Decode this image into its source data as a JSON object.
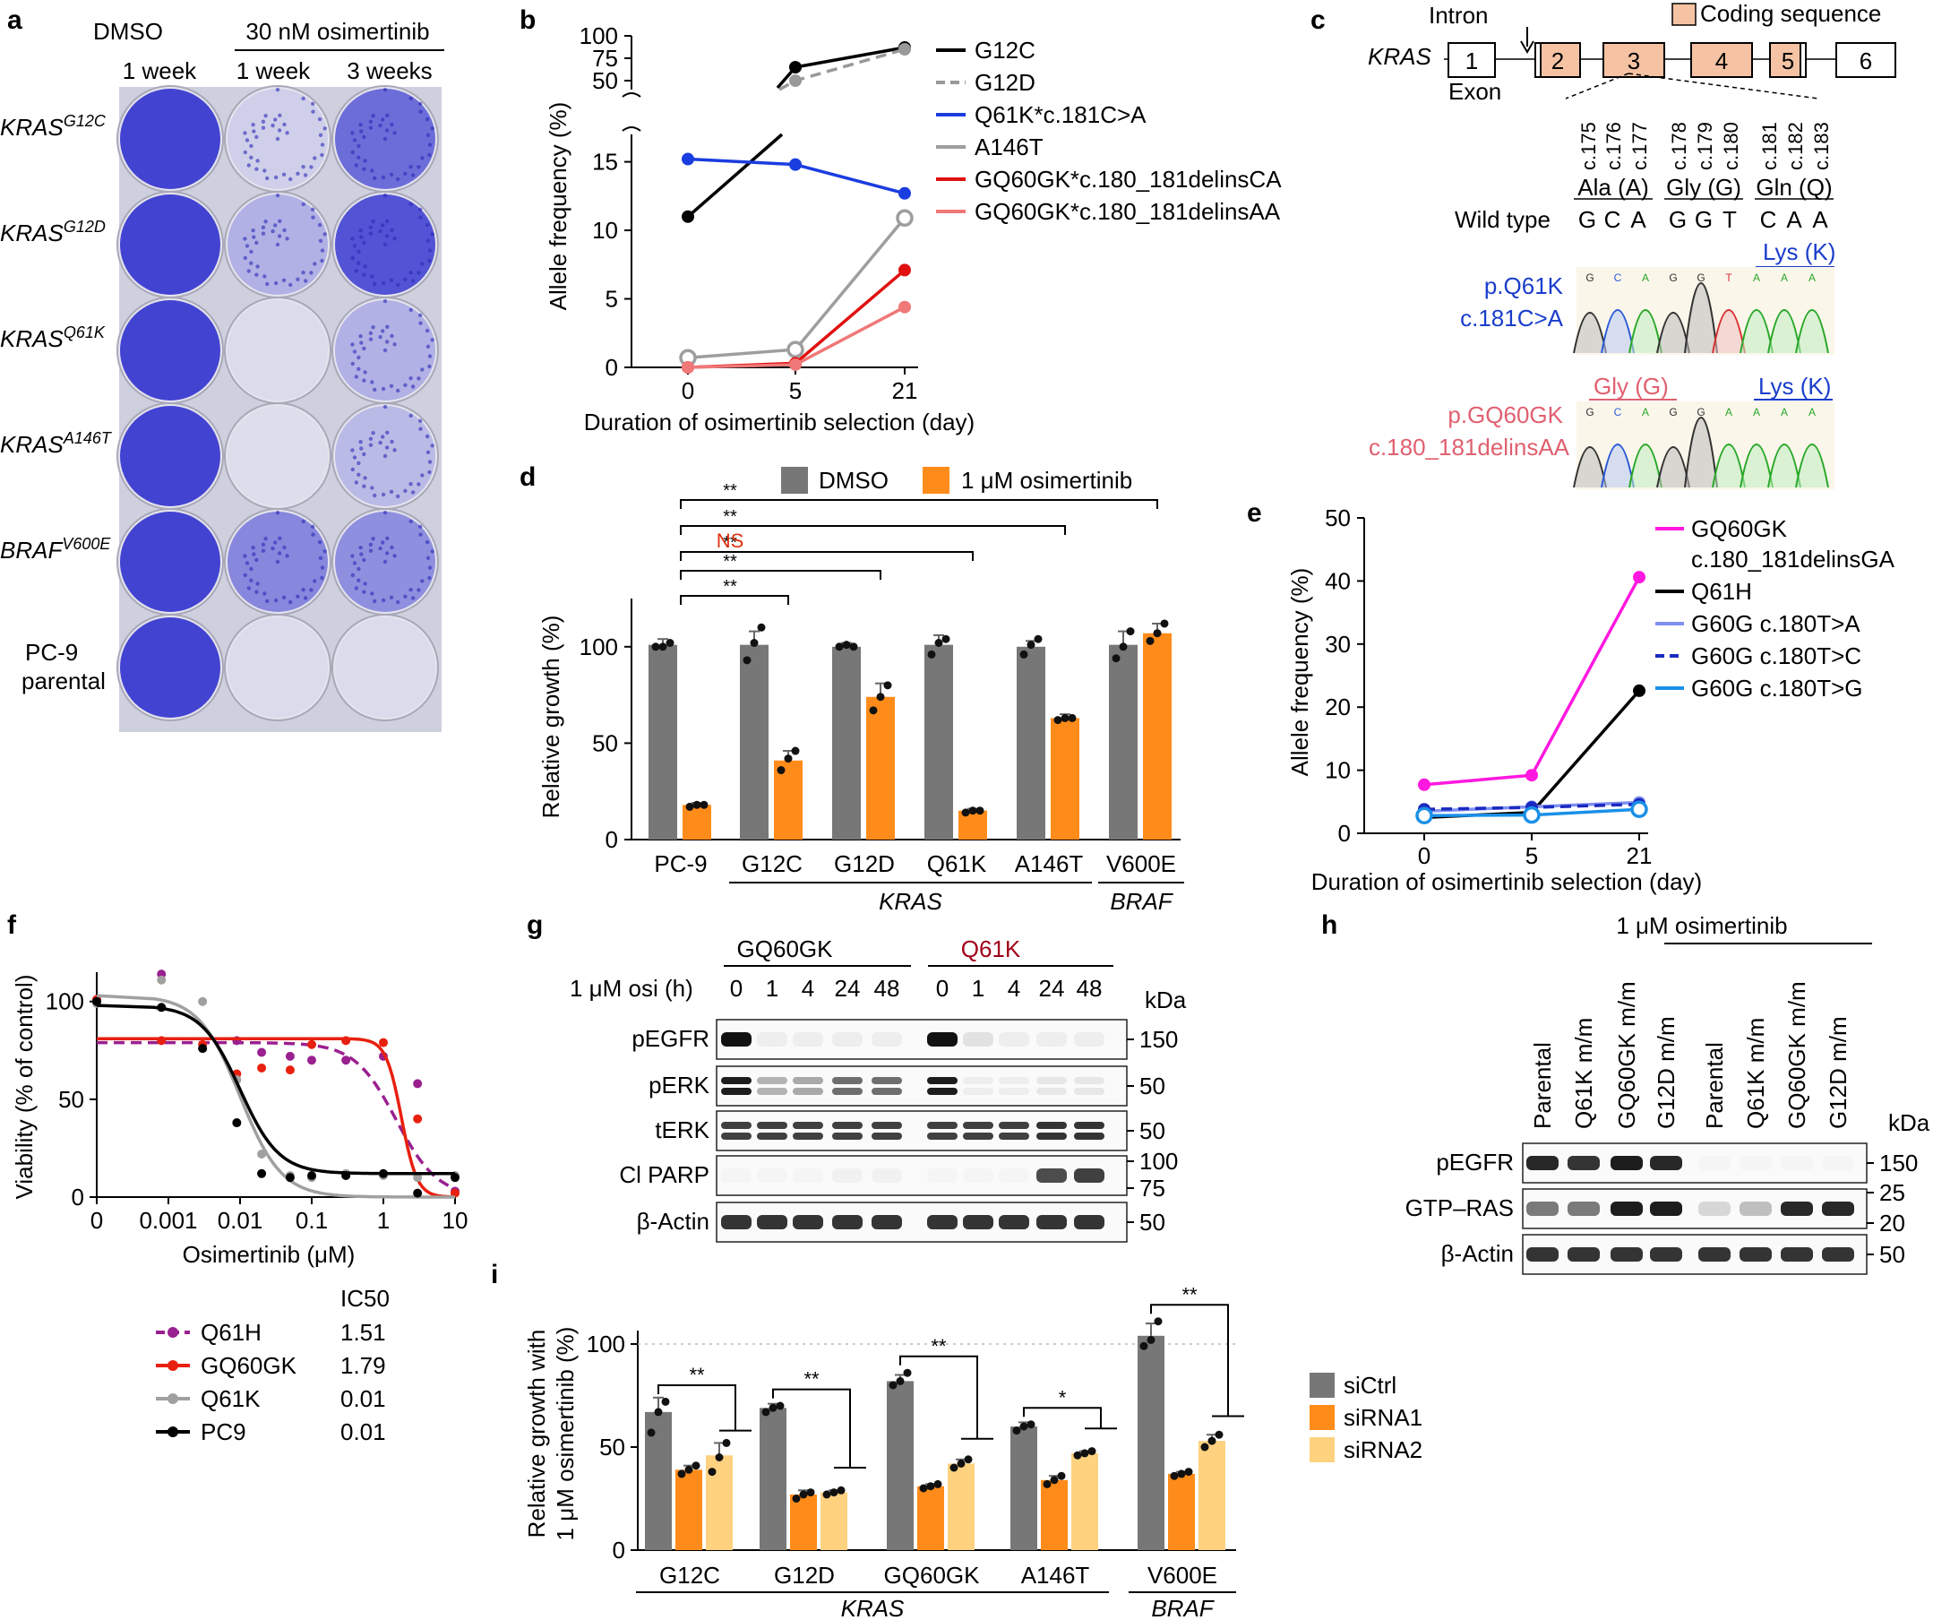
{
  "panels": {
    "a": "a",
    "b": "b",
    "c": "c",
    "d": "d",
    "e": "e",
    "f": "f",
    "g": "g",
    "h": "h",
    "i": "i"
  },
  "colors": {
    "dmso": "#777777",
    "osimertinib": "#ff8c1a",
    "sirna2": "#ffd280",
    "crystal_violet": "#3a3ad0",
    "coding": "#f5c3a4"
  },
  "panel_a": {
    "dmso": "DMSO",
    "osi": "30 nM osimertinib",
    "times": [
      "1 week",
      "1 week",
      "3 weeks"
    ],
    "rows": [
      {
        "gene": "KRAS",
        "sup": "G12C",
        "level": [
          0.95,
          0.12,
          0.7
        ]
      },
      {
        "gene": "KRAS",
        "sup": "G12D",
        "level": [
          0.95,
          0.3,
          0.85
        ]
      },
      {
        "gene": "KRAS",
        "sup": "Q61K",
        "level": [
          0.95,
          0.05,
          0.3
        ]
      },
      {
        "gene": "KRAS",
        "sup": "A146T",
        "level": [
          0.95,
          0.04,
          0.25
        ]
      },
      {
        "gene": "BRAF",
        "sup": "V600E",
        "level": [
          0.95,
          0.55,
          0.5
        ]
      },
      {
        "gene": "PC-9",
        "sup": "",
        "line2": "parental",
        "level": [
          0.95,
          0.05,
          0.05
        ]
      }
    ]
  },
  "panel_c": {
    "gene": "KRAS",
    "intron": "Intron",
    "coding": "Coding sequence",
    "exon": "Exon",
    "exons": [
      "1",
      "2",
      "3",
      "4",
      "5",
      "6"
    ],
    "positions": [
      "c.175",
      "c.176",
      "c.177",
      "c.178",
      "c.179",
      "c.180",
      "c.181",
      "c.182",
      "c.183"
    ],
    "amino_acids": [
      "Ala (A)",
      "Gly (G)",
      "Gln (Q)"
    ],
    "wt_label": "Wild type",
    "wt_bases": [
      "G",
      "C",
      "A",
      "G",
      "G",
      "T",
      "C",
      "A",
      "A"
    ],
    "lys": "Lys (K)",
    "gly": "Gly (G)",
    "q61k_p": "p.Q61K",
    "q61k_c": "c.181C>A",
    "gq_p": "p.GQ60GK",
    "gq_c": "c.180_181delinsAA",
    "trace1_bases": [
      "G",
      "C",
      "A",
      "G",
      "G",
      "T",
      "A",
      "A",
      "A"
    ],
    "trace2_bases": [
      "G",
      "C",
      "A",
      "G",
      "G",
      "A",
      "A",
      "A",
      "A"
    ]
  },
  "panel_f": {
    "ic50": "IC50"
  },
  "panel_g": {
    "groups": [
      "GQ60GK",
      "Q61K"
    ],
    "time_label": "1 μM osi (h)",
    "lanes": [
      "0",
      "1",
      "4",
      "24",
      "48",
      "0",
      "1",
      "4",
      "24",
      "48"
    ],
    "kda": "kDa",
    "rows": [
      {
        "label": "pEGFR",
        "markers": [
          "150"
        ],
        "level": [
          1,
          0.05,
          0.05,
          0.05,
          0.05,
          1,
          0.1,
          0.05,
          0.05,
          0.05
        ]
      },
      {
        "label": "pERK",
        "markers": [
          "50"
        ],
        "level": [
          0.95,
          0.3,
          0.35,
          0.6,
          0.6,
          0.95,
          0.05,
          0.05,
          0.08,
          0.08
        ],
        "double": true
      },
      {
        "label": "tERK",
        "markers": [
          "50"
        ],
        "level": [
          0.8,
          0.8,
          0.8,
          0.8,
          0.8,
          0.8,
          0.8,
          0.8,
          0.85,
          0.85
        ],
        "double": true
      },
      {
        "label": "Cl PARP",
        "markers": [
          "100",
          "75"
        ],
        "level": [
          0.02,
          0.02,
          0.02,
          0.04,
          0.04,
          0.02,
          0.02,
          0.02,
          0.75,
          0.8
        ]
      },
      {
        "label": "β-Actin",
        "markers": [
          "50"
        ],
        "level": [
          0.85,
          0.85,
          0.85,
          0.85,
          0.85,
          0.85,
          0.85,
          0.85,
          0.85,
          0.85
        ]
      }
    ]
  },
  "panel_h": {
    "treatment": "1 μM osimertinib",
    "lanes": [
      "Parental",
      "Q61K m/m",
      "GQ60GK m/m",
      "G12D m/m",
      "Parental",
      "Q61K m/m",
      "GQ60GK m/m",
      "G12D m/m"
    ],
    "kda": "kDa",
    "rows": [
      {
        "label": "pEGFR",
        "markers": [
          "150"
        ],
        "level": [
          0.9,
          0.85,
          0.95,
          0.9,
          0.02,
          0.02,
          0.02,
          0.02
        ]
      },
      {
        "label": "GTP–RAS",
        "markers": [
          "25",
          "20"
        ],
        "level": [
          0.55,
          0.55,
          0.95,
          0.95,
          0.15,
          0.25,
          0.9,
          0.9
        ]
      },
      {
        "label": "β-Actin",
        "markers": [
          "50"
        ],
        "level": [
          0.85,
          0.85,
          0.85,
          0.85,
          0.85,
          0.85,
          0.85,
          0.85
        ]
      }
    ]
  },
  "panel_i": {
    "ylabel1": "Relative growth with",
    "ylabel2": "1 μM osimertinib (%)"
  },
  "chart_data": [
    {
      "type": "heatmap",
      "title": "",
      "categories": [
        "KRAS G12C",
        "KRAS G12D",
        "KRAS Q61K",
        "KRAS A146T",
        "BRAF V600E",
        "PC-9 parental"
      ],
      "columns": [
        "DMSO 1 week",
        "30 nM osimertinib 1 week",
        "30 nM osimertinib 3 weeks"
      ]
    },
    {
      "type": "line",
      "title": "",
      "xlabel": "Duration of osimertinib selection (day)",
      "ylabel": "Allele frequency (%)",
      "x": [
        0,
        5,
        21
      ],
      "xticks": [
        "0",
        "5",
        "21"
      ],
      "yticks_lower": [
        "0",
        "5",
        "10",
        "15"
      ],
      "yticks_upper": [
        "50",
        "75",
        "100"
      ],
      "ylim_lower": [
        0,
        17
      ],
      "ylim_upper": [
        40,
        100
      ],
      "series": [
        {
          "name": "G12C",
          "color": "#000000",
          "values": [
            11,
            65,
            87
          ]
        },
        {
          "name": "G12D",
          "color": "#999999",
          "dashed": true,
          "values": [
            null,
            50,
            85
          ]
        },
        {
          "name": "Q61K*c.181C>A",
          "color": "#1a3de0",
          "values": [
            15.2,
            14.8,
            12.7
          ]
        },
        {
          "name": "A146T",
          "color": "#9e9e9e",
          "hollow": true,
          "values": [
            0.7,
            1.3,
            10.9
          ]
        },
        {
          "name": "GQ60GK*c.180_181delinsCA",
          "color": "#e01010",
          "values": [
            0,
            0.3,
            7.1
          ]
        },
        {
          "name": "GQ60GK*c.180_181delinsAA",
          "color": "#f07878",
          "values": [
            0,
            0.2,
            4.4
          ]
        }
      ]
    },
    {
      "type": "bar",
      "title": "",
      "ylabel": "Relative growth (%)",
      "categories": [
        "PC-9",
        "G12C",
        "G12D",
        "Q61K",
        "A146T",
        "V600E"
      ],
      "yticks": [
        "0",
        "50",
        "100"
      ],
      "ylim": [
        0,
        125
      ],
      "series": [
        {
          "name": "DMSO",
          "values": [
            101,
            101,
            100,
            101,
            100,
            101
          ],
          "errors": [
            3,
            7,
            2,
            5,
            3,
            7
          ],
          "points": [
            [
              100,
              100,
              102
            ],
            [
              93,
              102,
              110
            ],
            [
              100,
              101,
              100
            ],
            [
              96,
              102,
              104
            ],
            [
              96,
              101,
              104
            ],
            [
              94,
              100,
              108
            ]
          ]
        },
        {
          "name": "1 μM osimertinib",
          "values": [
            18,
            41,
            74,
            15,
            63,
            107
          ],
          "errors": [
            1,
            5,
            7,
            1,
            2,
            5
          ],
          "points": [
            [
              17,
              18,
              18
            ],
            [
              36,
              42,
              46
            ],
            [
              67,
              74,
              80
            ],
            [
              14,
              15,
              15
            ],
            [
              62,
              63,
              63
            ],
            [
              103,
              107,
              112
            ]
          ]
        }
      ],
      "groups": [
        {
          "label": "KRAS",
          "from": 1,
          "to": 4
        },
        {
          "label": "BRAF",
          "from": 5,
          "to": 5
        }
      ],
      "significance": [
        {
          "label": "**",
          "to": 1
        },
        {
          "label": "**",
          "to": 2
        },
        {
          "label": "**",
          "to": 3
        },
        {
          "label": "NS",
          "to": 4,
          "color": "#e03010"
        },
        {
          "label": "**",
          "to": 4
        },
        {
          "label": "**",
          "to": 5
        }
      ]
    },
    {
      "type": "line",
      "title": "",
      "xlabel": "Duration of osimertinib selection (day)",
      "ylabel": "Allele frequency (%)",
      "x": [
        0,
        5,
        21
      ],
      "xticks": [
        "0",
        "5",
        "21"
      ],
      "yticks": [
        "0",
        "10",
        "20",
        "30",
        "40",
        "50"
      ],
      "ylim": [
        0,
        50
      ],
      "series": [
        {
          "name": "GQ60GK",
          "name2": "c.180_181delinsGA",
          "color": "#ff18e0",
          "values": [
            7.7,
            9.2,
            40.6
          ]
        },
        {
          "name": "Q61H",
          "color": "#000000",
          "values": [
            2.5,
            3.3,
            22.6
          ]
        },
        {
          "name": "G60G c.180T>A",
          "color": "#8090f0",
          "values": [
            3.5,
            4.2,
            4.9
          ]
        },
        {
          "name": "G60G c.180T>C",
          "color": "#1a2ac0",
          "dashed": true,
          "values": [
            3.8,
            4.1,
            4.6
          ]
        },
        {
          "name": "G60G c.180T>G",
          "color": "#1a90e8",
          "hollow": true,
          "values": [
            2.8,
            2.9,
            3.8
          ]
        }
      ]
    },
    {
      "type": "table",
      "title": "",
      "rows": [
        "pEGFR",
        "pERK",
        "tERK",
        "Cl PARP",
        "β-Actin"
      ]
    },
    {
      "type": "line",
      "title": "",
      "xlabel": "Osimertinib (μM)",
      "ylabel": "Viability (% of control)",
      "xticks": [
        "0",
        "0.001",
        "0.01",
        "0.1",
        "1",
        "10"
      ],
      "yticks": [
        "0",
        "50",
        "100"
      ],
      "ylim": [
        0,
        115
      ],
      "doses": [
        0,
        0.0008,
        0.003,
        0.009,
        0.02,
        0.05,
        0.1,
        0.3,
        1,
        3,
        10
      ],
      "series": [
        {
          "name": "Q61H",
          "ic50": "1.51",
          "color": "#9a2090",
          "dashed": true,
          "top": 79,
          "bottom": 0,
          "hill": 1.5,
          "points": [
            101,
            114,
            76,
            80,
            74,
            72,
            70,
            70,
            72,
            58,
            3
          ]
        },
        {
          "name": "GQ60GK",
          "ic50": "1.79",
          "color": "#e82010",
          "top": 81,
          "bottom": 0,
          "hill": 4,
          "points": [
            101,
            80,
            78,
            63,
            66,
            65,
            78,
            80,
            79,
            40,
            2
          ]
        },
        {
          "name": "Q61K",
          "ic50": "0.01",
          "color": "#a0a0a0",
          "top": 103,
          "bottom": 0,
          "hill": 1.5,
          "points": [
            99,
            111,
            100,
            60,
            22,
            11,
            10,
            12,
            11,
            10,
            11
          ]
        },
        {
          "name": "PC9",
          "ic50": "0.01",
          "color": "#000000",
          "top": 98,
          "bottom": 12,
          "hill": 1.6,
          "points": [
            100,
            97,
            76,
            38,
            12,
            10,
            11,
            11,
            12,
            2,
            10
          ]
        }
      ]
    },
    {
      "type": "table",
      "title": "",
      "rows": [
        "pEGFR",
        "GTP–RAS",
        "β-Actin"
      ]
    },
    {
      "type": "bar",
      "title": "",
      "ylabel": "Relative growth with 1 μM osimertinib (%)",
      "categories": [
        "G12C",
        "G12D",
        "GQ60GK",
        "A146T",
        "V600E"
      ],
      "yticks": [
        "0",
        "50",
        "100"
      ],
      "ylim": [
        0,
        115
      ],
      "series": [
        {
          "name": "siCtrl",
          "values": [
            67,
            69,
            82,
            60,
            104
          ],
          "errors": [
            7,
            2,
            3,
            2,
            6
          ],
          "points": [
            [
              57,
              67,
              72
            ],
            [
              67,
              69,
              70
            ],
            [
              80,
              82,
              86
            ],
            [
              58,
              60,
              61
            ],
            [
              99,
              102,
              111
            ]
          ]
        },
        {
          "name": "siRNA1",
          "values": [
            39,
            27,
            31,
            34,
            37
          ],
          "errors": [
            2,
            2,
            1,
            2,
            1
          ],
          "points": [
            [
              37,
              39,
              41
            ],
            [
              25,
              27,
              28
            ],
            [
              30,
              31,
              32
            ],
            [
              32,
              34,
              36
            ],
            [
              36,
              37,
              38
            ]
          ]
        },
        {
          "name": "siRNA2",
          "values": [
            46,
            28,
            42,
            47,
            53
          ],
          "errors": [
            6,
            1,
            2,
            1,
            3
          ],
          "points": [
            [
              38,
              45,
              52
            ],
            [
              27,
              28,
              29
            ],
            [
              40,
              42,
              44
            ],
            [
              46,
              47,
              48
            ],
            [
              50,
              53,
              56
            ]
          ]
        }
      ],
      "groups": [
        {
          "label": "KRAS",
          "from": 0,
          "to": 3
        },
        {
          "label": "BRAF",
          "from": 4,
          "to": 4
        }
      ],
      "significance": [
        "**",
        "**",
        "**",
        "*",
        "**"
      ]
    }
  ]
}
